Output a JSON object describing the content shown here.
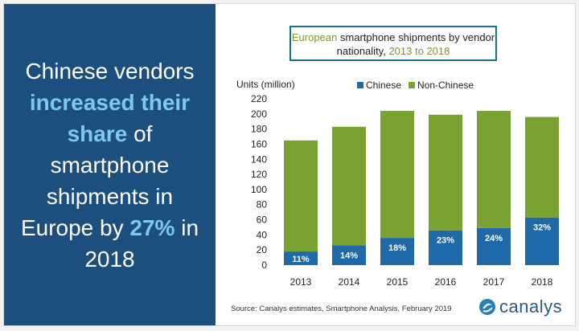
{
  "headline": {
    "part1": "Chinese vendors",
    "highlight1": "increased their share",
    "part2": "of smartphone shipments in Europe by",
    "highlight2": "27%",
    "part3": "in 2018"
  },
  "title": {
    "part1": "European",
    "part2": "smartphone shipments by vendor nationality,",
    "part3": "2013 to 2018"
  },
  "source": "Source: Canalys estimates, Smartphone Analysis, February 2019",
  "logo": "canalys",
  "colors": {
    "panel": "#1c4f7d",
    "chinese": "#1f69a8",
    "non_chinese": "#79a233",
    "highlight": "#7cc9ea",
    "title_accent": "#7b9a2a"
  },
  "chart_data": {
    "type": "bar",
    "stacked": true,
    "title": "European smartphone shipments by vendor nationality, 2013 to 2018",
    "ylabel": "Units (million)",
    "ylim": [
      0,
      220
    ],
    "yticks": [
      0,
      20,
      40,
      60,
      80,
      100,
      120,
      140,
      160,
      180,
      200,
      220
    ],
    "categories": [
      "2013",
      "2014",
      "2015",
      "2016",
      "2017",
      "2018"
    ],
    "legend": "top",
    "series": [
      {
        "name": "Chinese",
        "values": [
          18,
          26,
          36,
          46,
          49,
          63
        ],
        "labels": [
          "11%",
          "14%",
          "18%",
          "23%",
          "24%",
          "32%"
        ]
      },
      {
        "name": "Non-Chinese",
        "values": [
          147,
          157,
          168,
          153,
          155,
          133
        ]
      }
    ]
  }
}
